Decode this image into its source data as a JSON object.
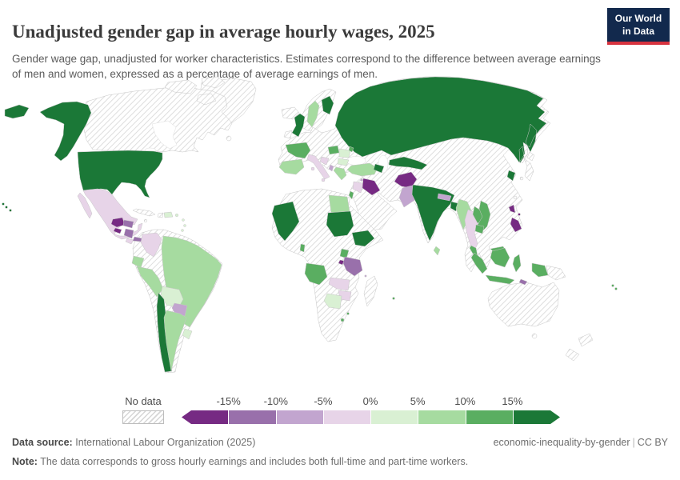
{
  "header": {
    "title": "Unadjusted gender gap in average hourly wages, 2025",
    "subtitle": "Gender wage gap, unadjusted for worker characteristics. Estimates correspond to the difference between average earnings of men and women, expressed as a percentage of average earnings of men.",
    "logo": {
      "line1": "Our World",
      "line2": "in Data",
      "bg_color": "#12294d",
      "accent_color": "#d7333f"
    }
  },
  "legend": {
    "no_data_label": "No data",
    "ticks": [
      "-15%",
      "-10%",
      "-5%",
      "0%",
      "5%",
      "10%",
      "15%"
    ],
    "bins": [
      {
        "range": "< -15%",
        "color": "#762a83"
      },
      {
        "range": "-15% to -10%",
        "color": "#9970ab"
      },
      {
        "range": "-10% to -5%",
        "color": "#c2a5cf"
      },
      {
        "range": "-5% to 0%",
        "color": "#e7d4e8"
      },
      {
        "range": "0% to 5%",
        "color": "#d9f0d3"
      },
      {
        "range": "5% to 10%",
        "color": "#a6dba0"
      },
      {
        "range": "10% to 15%",
        "color": "#5aae61"
      },
      {
        "range": "> 15%",
        "color": "#1b7837"
      }
    ]
  },
  "footer": {
    "source_label": "Data source:",
    "source_text": "International Labour Organization (2025)",
    "slug": "economic-inequality-by-gender",
    "separator": "|",
    "license": "CC BY",
    "note_label": "Note:",
    "note_text": "The data corresponds to gross hourly earnings and includes both full-time and part-time workers."
  },
  "chart_data": {
    "type": "choropleth_map",
    "title": "Unadjusted gender gap in average hourly wages, 2025",
    "unit": "% of average earnings of men",
    "palette": "PRGn (purple = negative gap, green = positive gap)",
    "legend_ticks": [
      "-15%",
      "-10%",
      "-5%",
      "0%",
      "5%",
      "10%",
      "15%"
    ],
    "no_data_regions": [
      "Canada",
      "Greenland",
      "Venezuela",
      "Guyana",
      "Suriname",
      "Cuba",
      "Haiti",
      "Jamaica",
      "Iceland",
      "Ireland",
      "Norway",
      "Germany",
      "Poland",
      "Ukraine",
      "Belarus",
      "Baltic states",
      "Serbia",
      "Austria",
      "Switzerland",
      "Morocco",
      "Algeria",
      "Tunisia",
      "Libya",
      "Mauritania",
      "Senegal",
      "Guinea",
      "Cote d'Ivoire",
      "Ghana",
      "Nigeria",
      "Niger",
      "Chad",
      "DR Congo",
      "Kenya",
      "Somalia",
      "Mozambique",
      "Namibia",
      "South Africa",
      "Madagascar",
      "Saudi Arabia",
      "Yemen",
      "Oman",
      "Iran",
      "Turkmenistan",
      "Kazakhstan",
      "Mongolia",
      "China",
      "North Korea",
      "Japan",
      "Taiwan",
      "Papua New Guinea",
      "Australia",
      "New Zealand"
    ]
  },
  "map": {
    "countries": [
      {
        "id": "usa",
        "name": "United States",
        "bin": "> 15%",
        "color": "#1b7837"
      },
      {
        "id": "alaska",
        "name": "United States (Alaska)",
        "bin": "> 15%",
        "color": "#1b7837"
      },
      {
        "id": "chile",
        "name": "Chile",
        "bin": "> 15%",
        "color": "#1b7837"
      },
      {
        "id": "uk",
        "name": "United Kingdom",
        "bin": "> 15%",
        "color": "#1b7837"
      },
      {
        "id": "finland",
        "name": "Finland",
        "bin": "> 15%",
        "color": "#1b7837"
      },
      {
        "id": "russia",
        "name": "Russia",
        "bin": "> 15%",
        "color": "#1b7837"
      },
      {
        "id": "uzbekistan",
        "name": "Uzbekistan",
        "bin": "> 15%",
        "color": "#1b7837"
      },
      {
        "id": "azerbaijan",
        "name": "Azerbaijan",
        "bin": "> 15%",
        "color": "#1b7837"
      },
      {
        "id": "india",
        "name": "India",
        "bin": "> 15%",
        "color": "#1b7837"
      },
      {
        "id": "bangladesh",
        "name": "Bangladesh",
        "bin": "> 15%",
        "color": "#1b7837"
      },
      {
        "id": "south-korea",
        "name": "South Korea",
        "bin": "> 15%",
        "color": "#1b7837"
      },
      {
        "id": "mali",
        "name": "Mali",
        "bin": "> 15%",
        "color": "#1b7837"
      },
      {
        "id": "sudan",
        "name": "Sudan",
        "bin": "> 15%",
        "color": "#1b7837"
      },
      {
        "id": "ethiopia",
        "name": "Ethiopia",
        "bin": "> 15%",
        "color": "#1b7837"
      },
      {
        "id": "pacific-islands",
        "name": "US Pacific islands",
        "bin": "> 15%",
        "color": "#1b7837"
      },
      {
        "id": "france",
        "name": "France",
        "bin": "10% to 15%",
        "color": "#5aae61"
      },
      {
        "id": "hungary",
        "name": "Hungary",
        "bin": "10% to 15%",
        "color": "#5aae61"
      },
      {
        "id": "moldova",
        "name": "Moldova",
        "bin": "10% to 15%",
        "color": "#5aae61"
      },
      {
        "id": "israel",
        "name": "Israel",
        "bin": "10% to 15%",
        "color": "#5aae61"
      },
      {
        "id": "laos",
        "name": "Laos",
        "bin": "10% to 15%",
        "color": "#5aae61"
      },
      {
        "id": "vietnam",
        "name": "Vietnam",
        "bin": "10% to 15%",
        "color": "#5aae61"
      },
      {
        "id": "cambodia",
        "name": "Cambodia",
        "bin": "10% to 15%",
        "color": "#5aae61"
      },
      {
        "id": "malaysia-pen",
        "name": "Malaysia (peninsular)",
        "bin": "10% to 15%",
        "color": "#5aae61"
      },
      {
        "id": "malaysia-borneo",
        "name": "Malaysia (Borneo)",
        "bin": "10% to 15%",
        "color": "#5aae61"
      },
      {
        "id": "sumatra",
        "name": "Indonesia (Sumatra)",
        "bin": "10% to 15%",
        "color": "#5aae61"
      },
      {
        "id": "java",
        "name": "Indonesia (Java)",
        "bin": "10% to 15%",
        "color": "#5aae61"
      },
      {
        "id": "kalimantan",
        "name": "Indonesia (Kalimantan)",
        "bin": "10% to 15%",
        "color": "#5aae61"
      },
      {
        "id": "sulawesi",
        "name": "Indonesia (Sulawesi)",
        "bin": "10% to 15%",
        "color": "#5aae61"
      },
      {
        "id": "west-papua",
        "name": "Indonesia (Papua)",
        "bin": "10% to 15%",
        "color": "#5aae61"
      },
      {
        "id": "uganda",
        "name": "Uganda",
        "bin": "10% to 15%",
        "color": "#5aae61"
      },
      {
        "id": "angola",
        "name": "Angola",
        "bin": "10% to 15%",
        "color": "#5aae61"
      },
      {
        "id": "benin-togo",
        "name": "Benin / Togo",
        "bin": "10% to 15%",
        "color": "#5aae61"
      },
      {
        "id": "lesotho",
        "name": "Lesotho",
        "bin": "10% to 15%",
        "color": "#5aae61"
      },
      {
        "id": "eswatini",
        "name": "Eswatini",
        "bin": "10% to 15%",
        "color": "#5aae61"
      },
      {
        "id": "fiji",
        "name": "Fiji",
        "bin": "10% to 15%",
        "color": "#5aae61"
      },
      {
        "id": "mauritius",
        "name": "Mauritius",
        "bin": "10% to 15%",
        "color": "#5aae61"
      },
      {
        "id": "iberia",
        "name": "Spain & Portugal",
        "bin": "5% to 10%",
        "color": "#a6dba0"
      },
      {
        "id": "sweden",
        "name": "Sweden",
        "bin": "5% to 10%",
        "color": "#a6dba0"
      },
      {
        "id": "greece",
        "name": "Greece",
        "bin": "5% to 10%",
        "color": "#a6dba0"
      },
      {
        "id": "turkey",
        "name": "Turkey",
        "bin": "5% to 10%",
        "color": "#a6dba0"
      },
      {
        "id": "egypt",
        "name": "Egypt",
        "bin": "5% to 10%",
        "color": "#a6dba0"
      },
      {
        "id": "myanmar",
        "name": "Myanmar",
        "bin": "5% to 10%",
        "color": "#a6dba0"
      },
      {
        "id": "sri-lanka",
        "name": "Sri Lanka",
        "bin": "5% to 10%",
        "color": "#a6dba0"
      },
      {
        "id": "brazil",
        "name": "Brazil",
        "bin": "5% to 10%",
        "color": "#a6dba0"
      },
      {
        "id": "peru",
        "name": "Peru",
        "bin": "5% to 10%",
        "color": "#a6dba0"
      },
      {
        "id": "ecuador",
        "name": "Ecuador",
        "bin": "5% to 10%",
        "color": "#a6dba0"
      },
      {
        "id": "argentina",
        "name": "Argentina",
        "bin": "5% to 10%",
        "color": "#a6dba0"
      },
      {
        "id": "romania",
        "name": "Romania",
        "bin": "0% to 5%",
        "color": "#d9f0d3"
      },
      {
        "id": "bulgaria",
        "name": "Bulgaria",
        "bin": "0% to 5%",
        "color": "#d9f0d3"
      },
      {
        "id": "bolivia",
        "name": "Bolivia",
        "bin": "0% to 5%",
        "color": "#d9f0d3"
      },
      {
        "id": "uruguay",
        "name": "Uruguay",
        "bin": "0% to 5%",
        "color": "#d9f0d3"
      },
      {
        "id": "dominican-republic",
        "name": "Dominican Republic",
        "bin": "0% to 5%",
        "color": "#d9f0d3"
      },
      {
        "id": "botswana",
        "name": "Botswana",
        "bin": "0% to 5%",
        "color": "#d9f0d3"
      },
      {
        "id": "antilles",
        "name": "Lesser Antilles",
        "bin": "0% to 5%",
        "color": "#d9f0d3"
      },
      {
        "id": "mexico",
        "name": "Mexico",
        "bin": "-5% to 0%",
        "color": "#e7d4e8"
      },
      {
        "id": "colombia",
        "name": "Colombia",
        "bin": "-5% to 0%",
        "color": "#e7d4e8"
      },
      {
        "id": "italy",
        "name": "Italy",
        "bin": "-5% to 0%",
        "color": "#e7d4e8"
      },
      {
        "id": "croatia-bosnia",
        "name": "Croatia / Bosnia",
        "bin": "-5% to 0%",
        "color": "#e7d4e8"
      },
      {
        "id": "syria-jordan",
        "name": "Syria / Jordan",
        "bin": "-5% to 0%",
        "color": "#e7d4e8"
      },
      {
        "id": "thailand",
        "name": "Thailand",
        "bin": "-5% to 0%",
        "color": "#e7d4e8"
      },
      {
        "id": "zambia",
        "name": "Zambia",
        "bin": "-5% to 0%",
        "color": "#e7d4e8"
      },
      {
        "id": "zimbabwe",
        "name": "Zimbabwe",
        "bin": "-5% to 0%",
        "color": "#e7d4e8"
      },
      {
        "id": "costa-rica",
        "name": "Costa Rica",
        "bin": "-5% to 0%",
        "color": "#e7d4e8"
      },
      {
        "id": "paraguay",
        "name": "Paraguay",
        "bin": "-10% to -5%",
        "color": "#c2a5cf"
      },
      {
        "id": "pakistan",
        "name": "Pakistan",
        "bin": "-10% to -5%",
        "color": "#c2a5cf"
      },
      {
        "id": "nepal",
        "name": "Nepal",
        "bin": "-10% to -5%",
        "color": "#c2a5cf"
      },
      {
        "id": "albania",
        "name": "Albania",
        "bin": "-10% to -5%",
        "color": "#c2a5cf"
      },
      {
        "id": "cyprus",
        "name": "Cyprus",
        "bin": "-10% to -5%",
        "color": "#c2a5cf"
      },
      {
        "id": "comoros",
        "name": "Comoros",
        "bin": "-10% to -5%",
        "color": "#c2a5cf"
      },
      {
        "id": "honduras",
        "name": "Honduras",
        "bin": "-15% to -10%",
        "color": "#9970ab"
      },
      {
        "id": "nicaragua",
        "name": "Nicaragua",
        "bin": "-15% to -10%",
        "color": "#9970ab"
      },
      {
        "id": "panama",
        "name": "Panama",
        "bin": "-15% to -10%",
        "color": "#9970ab"
      },
      {
        "id": "tanzania",
        "name": "Tanzania",
        "bin": "-15% to -10%",
        "color": "#9970ab"
      },
      {
        "id": "timor",
        "name": "Timor-Leste",
        "bin": "-15% to -10%",
        "color": "#9970ab"
      },
      {
        "id": "guatemala",
        "name": "Guatemala",
        "bin": "< -15%",
        "color": "#762a83"
      },
      {
        "id": "el-salvador",
        "name": "El Salvador",
        "bin": "< -15%",
        "color": "#762a83"
      },
      {
        "id": "iraq",
        "name": "Iraq",
        "bin": "< -15%",
        "color": "#762a83"
      },
      {
        "id": "afghanistan",
        "name": "Afghanistan",
        "bin": "< -15%",
        "color": "#762a83"
      },
      {
        "id": "rwanda",
        "name": "Rwanda",
        "bin": "< -15%",
        "color": "#762a83"
      },
      {
        "id": "philippines",
        "name": "Philippines",
        "bin": "< -15%",
        "color": "#762a83"
      },
      {
        "id": "philippines2",
        "name": "Philippines (south)",
        "bin": "< -15%",
        "color": "#762a83"
      },
      {
        "id": "philippines3",
        "name": "Philippines (islands)",
        "bin": "< -15%",
        "color": "#762a83"
      }
    ]
  }
}
